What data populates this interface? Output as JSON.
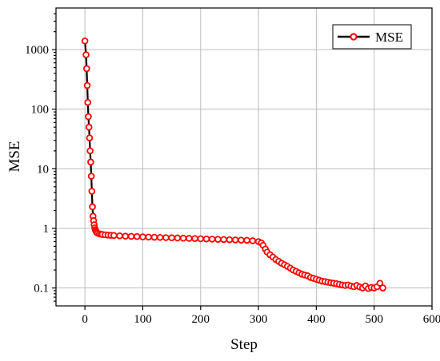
{
  "chart_data": {
    "type": "line",
    "xlabel": "Step",
    "ylabel": "MSE",
    "xlim": [
      -50,
      600
    ],
    "ylim": [
      0.05,
      5000
    ],
    "yscale": "log",
    "xticks": [
      0,
      100,
      200,
      300,
      400,
      500,
      600
    ],
    "yticks": [
      0.1,
      1,
      10,
      100,
      1000
    ],
    "xtick_labels": [
      "0",
      "100",
      "200",
      "300",
      "400",
      "500",
      "600"
    ],
    "ytick_labels": [
      "0.1",
      "1",
      "10",
      "100",
      "1000"
    ],
    "grid": true,
    "legend_position": "top-right",
    "series": [
      {
        "name": "MSE",
        "line_color": "#000000",
        "marker_color": "#ff0000",
        "x": [
          0,
          2,
          3,
          4,
          5,
          6,
          7,
          8,
          9,
          10,
          11,
          12,
          13,
          14,
          15,
          16,
          17,
          18,
          19,
          20,
          22,
          25,
          28,
          30,
          35,
          40,
          45,
          50,
          60,
          70,
          80,
          90,
          100,
          110,
          120,
          130,
          140,
          150,
          160,
          170,
          180,
          190,
          200,
          210,
          220,
          230,
          240,
          250,
          260,
          270,
          280,
          290,
          300,
          305,
          308,
          312,
          315,
          320,
          325,
          330,
          335,
          340,
          345,
          350,
          355,
          360,
          365,
          370,
          375,
          380,
          385,
          390,
          395,
          400,
          405,
          410,
          415,
          420,
          425,
          430,
          435,
          440,
          445,
          450,
          455,
          460,
          465,
          470,
          475,
          480,
          485,
          490,
          495,
          500,
          505,
          510,
          515
        ],
        "y": [
          1400,
          820,
          480,
          250,
          130,
          75,
          50,
          33,
          20,
          13,
          7.5,
          4.2,
          2.3,
          1.6,
          1.35,
          1.15,
          1.02,
          0.95,
          0.9,
          0.86,
          0.83,
          0.81,
          0.8,
          0.79,
          0.78,
          0.77,
          0.765,
          0.76,
          0.75,
          0.74,
          0.735,
          0.73,
          0.72,
          0.715,
          0.71,
          0.705,
          0.7,
          0.695,
          0.69,
          0.685,
          0.68,
          0.675,
          0.67,
          0.665,
          0.66,
          0.655,
          0.65,
          0.645,
          0.64,
          0.635,
          0.63,
          0.62,
          0.6,
          0.57,
          0.52,
          0.45,
          0.4,
          0.36,
          0.33,
          0.3,
          0.28,
          0.26,
          0.245,
          0.23,
          0.215,
          0.2,
          0.19,
          0.18,
          0.17,
          0.165,
          0.16,
          0.15,
          0.145,
          0.14,
          0.135,
          0.13,
          0.128,
          0.125,
          0.122,
          0.12,
          0.118,
          0.115,
          0.112,
          0.11,
          0.112,
          0.108,
          0.105,
          0.11,
          0.104,
          0.1,
          0.108,
          0.098,
          0.102,
          0.1,
          0.105,
          0.12,
          0.1
        ]
      }
    ]
  }
}
